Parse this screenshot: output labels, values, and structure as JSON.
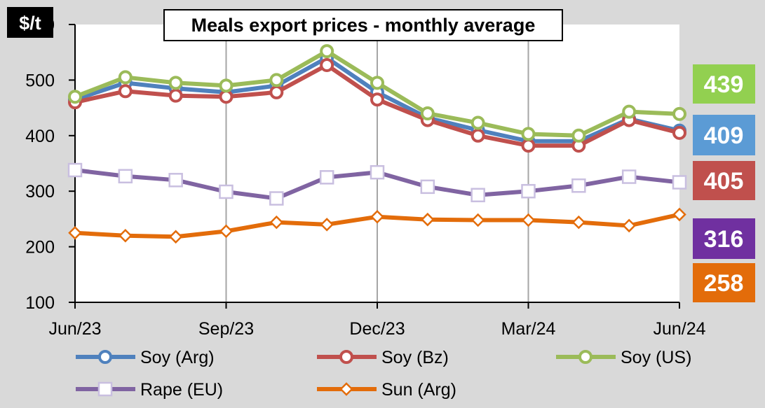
{
  "chart_data": {
    "type": "line",
    "title": "Meals export prices - monthly average",
    "ylabel": "$/t",
    "xlabel": "",
    "ylim": [
      100,
      600
    ],
    "yticks": [
      100,
      200,
      300,
      400,
      500,
      600
    ],
    "categories": [
      "Jun/23",
      "Jul/23",
      "Aug/23",
      "Sep/23",
      "Oct/23",
      "Nov/23",
      "Dec/23",
      "Jan/24",
      "Feb/24",
      "Mar/24",
      "Apr/24",
      "May/24",
      "Jun/24"
    ],
    "x_tick_labels": [
      {
        "index": 0,
        "label": "Jun/23"
      },
      {
        "index": 3,
        "label": "Sep/23"
      },
      {
        "index": 6,
        "label": "Dec/23"
      },
      {
        "index": 9,
        "label": "Mar/24"
      },
      {
        "index": 12,
        "label": "Jun/24"
      }
    ],
    "grid": "vertical-only",
    "legend_placement": "bottom",
    "series": [
      {
        "name": "Soy (Arg)",
        "color": "#4f81bd",
        "marker": "circle",
        "values": [
          465,
          495,
          485,
          478,
          490,
          540,
          478,
          432,
          410,
          390,
          390,
          430,
          409
        ]
      },
      {
        "name": "Soy (Bz)",
        "color": "#c0504d",
        "marker": "circle",
        "values": [
          460,
          480,
          472,
          470,
          478,
          527,
          465,
          428,
          400,
          382,
          382,
          428,
          405
        ]
      },
      {
        "name": "Soy (US)",
        "color": "#9bbb59",
        "marker": "circle",
        "values": [
          470,
          505,
          495,
          490,
          500,
          552,
          495,
          440,
          423,
          403,
          400,
          443,
          439
        ]
      },
      {
        "name": "Rape (EU)",
        "color": "#8064a2",
        "marker": "square",
        "values": [
          338,
          327,
          320,
          299,
          287,
          325,
          334,
          308,
          293,
          300,
          310,
          326,
          316
        ]
      },
      {
        "name": "Sun (Arg)",
        "color": "#e36c0a",
        "marker": "diamond",
        "values": [
          225,
          220,
          218,
          228,
          244,
          240,
          254,
          249,
          248,
          248,
          244,
          238,
          258
        ]
      }
    ],
    "latest_value_badges": [
      {
        "series": "Soy (US)",
        "label": "439",
        "color": "#92d050"
      },
      {
        "series": "Soy (Arg)",
        "label": "409",
        "color": "#5b9bd5"
      },
      {
        "series": "Soy (Bz)",
        "label": "405",
        "color": "#c0504d"
      },
      {
        "series": "Rape (EU)",
        "label": "316",
        "color": "#7030a0"
      },
      {
        "series": "Sun (Arg)",
        "label": "258",
        "color": "#e36c0a"
      }
    ]
  }
}
